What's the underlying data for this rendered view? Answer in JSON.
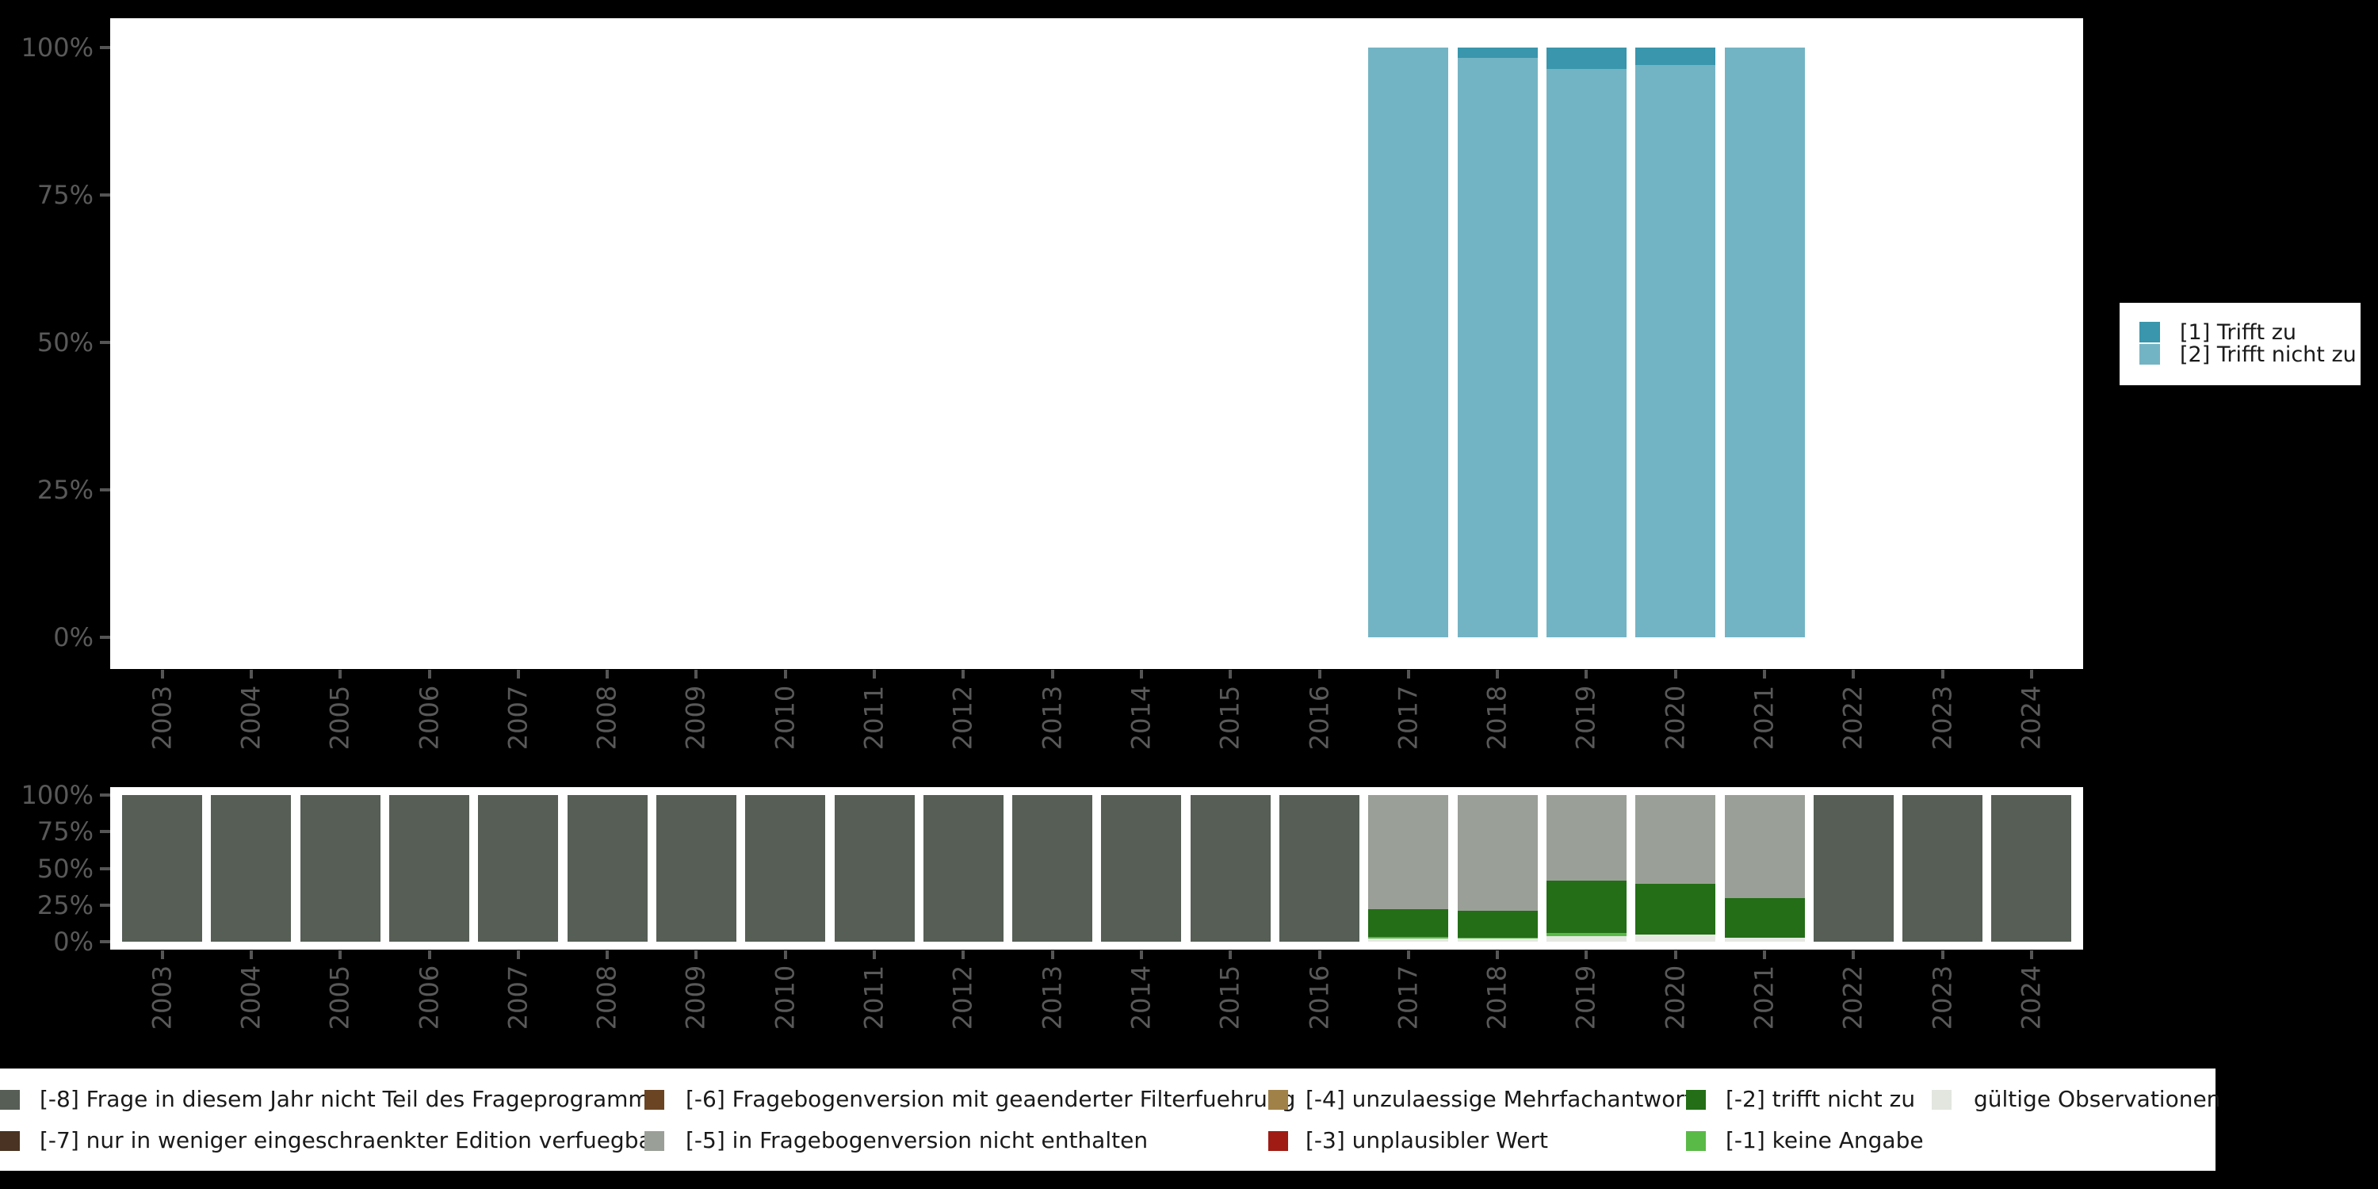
{
  "background_color": "#000000",
  "panel_color": "#FFFFFF",
  "axis_text_color": "#595959",
  "legend_text_color": "#1a1a1a",
  "chart_data": [
    {
      "type": "bar",
      "stacked": true,
      "unit": "percent",
      "title": "",
      "xlabel": "",
      "ylabel": "",
      "ylim": [
        0,
        100
      ],
      "grid": false,
      "x_tick_rotation": 90,
      "legend_position": "right",
      "categories": [
        2003,
        2004,
        2005,
        2006,
        2007,
        2008,
        2009,
        2010,
        2011,
        2012,
        2013,
        2014,
        2015,
        2016,
        2017,
        2018,
        2019,
        2020,
        2021,
        2022,
        2023,
        2024
      ],
      "y_tick_labels": [
        "100%",
        "75%",
        "50%",
        "25%",
        "0%"
      ],
      "series": [
        {
          "name": "[1] Trifft zu",
          "color": "#3996AC",
          "values": [
            null,
            null,
            null,
            null,
            null,
            null,
            null,
            null,
            null,
            null,
            null,
            null,
            null,
            null,
            0,
            1.7,
            3.6,
            3.0,
            0,
            null,
            null,
            null
          ]
        },
        {
          "name": "[2] Trifft nicht zu",
          "color": "#73B4C4",
          "values": [
            null,
            null,
            null,
            null,
            null,
            null,
            null,
            null,
            null,
            null,
            null,
            null,
            null,
            null,
            100,
            98.3,
            96.4,
            97.0,
            100,
            null,
            null,
            null
          ]
        }
      ],
      "legend": [
        {
          "label": "[1] Trifft zu",
          "color": "#3996AC"
        },
        {
          "label": "[2] Trifft nicht zu",
          "color": "#73B4C4"
        }
      ]
    },
    {
      "type": "bar",
      "stacked": true,
      "unit": "percent",
      "title": "",
      "xlabel": "",
      "ylabel": "",
      "ylim": [
        0,
        100
      ],
      "grid": false,
      "x_tick_rotation": 90,
      "legend_position": "bottom",
      "categories": [
        2003,
        2004,
        2005,
        2006,
        2007,
        2008,
        2009,
        2010,
        2011,
        2012,
        2013,
        2014,
        2015,
        2016,
        2017,
        2018,
        2019,
        2020,
        2021,
        2022,
        2023,
        2024
      ],
      "y_tick_labels": [
        "100%",
        "75%",
        "50%",
        "25%",
        "0%"
      ],
      "series": [
        {
          "name": "[-8] Frage in diesem Jahr nicht Teil des Frageprogramms",
          "color": "#565E56",
          "values": [
            100,
            100,
            100,
            100,
            100,
            100,
            100,
            100,
            100,
            100,
            100,
            100,
            100,
            100,
            0,
            0,
            0,
            0,
            0,
            100,
            100,
            100
          ]
        },
        {
          "name": "[-5] in Fragebogenversion nicht enthalten",
          "color": "#9AA097",
          "values": [
            0,
            0,
            0,
            0,
            0,
            0,
            0,
            0,
            0,
            0,
            0,
            0,
            0,
            0,
            77.8,
            78.9,
            58.4,
            60.5,
            70.3,
            0,
            0,
            0
          ]
        },
        {
          "name": "[-2] trifft nicht zu",
          "color": "#236E16",
          "values": [
            0,
            0,
            0,
            0,
            0,
            0,
            0,
            0,
            0,
            0,
            0,
            0,
            0,
            0,
            18.9,
            18.4,
            35.7,
            34.6,
            27.0,
            0,
            0,
            0
          ]
        },
        {
          "name": "[-1] keine Angabe",
          "color": "#5ABA47",
          "values": [
            0,
            0,
            0,
            0,
            0,
            0,
            0,
            0,
            0,
            0,
            0,
            0,
            0,
            0,
            1.3,
            0.5,
            2.1,
            0,
            0,
            0,
            0,
            0
          ]
        },
        {
          "name": "gültige Observationen",
          "color": "#E5E9E2",
          "values": [
            0,
            0,
            0,
            0,
            0,
            0,
            0,
            0,
            0,
            0,
            0,
            0,
            0,
            0,
            2.0,
            2.2,
            3.8,
            4.9,
            2.7,
            0,
            0,
            0
          ]
        }
      ],
      "legend": [
        {
          "label": "[-8] Frage in diesem Jahr nicht Teil des Frageprogramms",
          "color": "#565E56"
        },
        {
          "label": "[-7] nur in weniger eingeschraenkter Edition verfuegbar",
          "color": "#4A3322"
        },
        {
          "label": "[-6] Fragebogenversion mit geaenderter Filterfuehrung",
          "color": "#6A4423"
        },
        {
          "label": "[-5] in Fragebogenversion nicht enthalten",
          "color": "#9AA097"
        },
        {
          "label": "[-4] unzulaessige Mehrfachantwort",
          "color": "#A08148"
        },
        {
          "label": "[-3] unplausibler Wert",
          "color": "#A01B14"
        },
        {
          "label": "[-2] trifft nicht zu",
          "color": "#236E16"
        },
        {
          "label": "[-1] keine Angabe",
          "color": "#5ABA47"
        },
        {
          "label": "gültige Observationen",
          "color": "#E2E6DF"
        }
      ]
    }
  ]
}
